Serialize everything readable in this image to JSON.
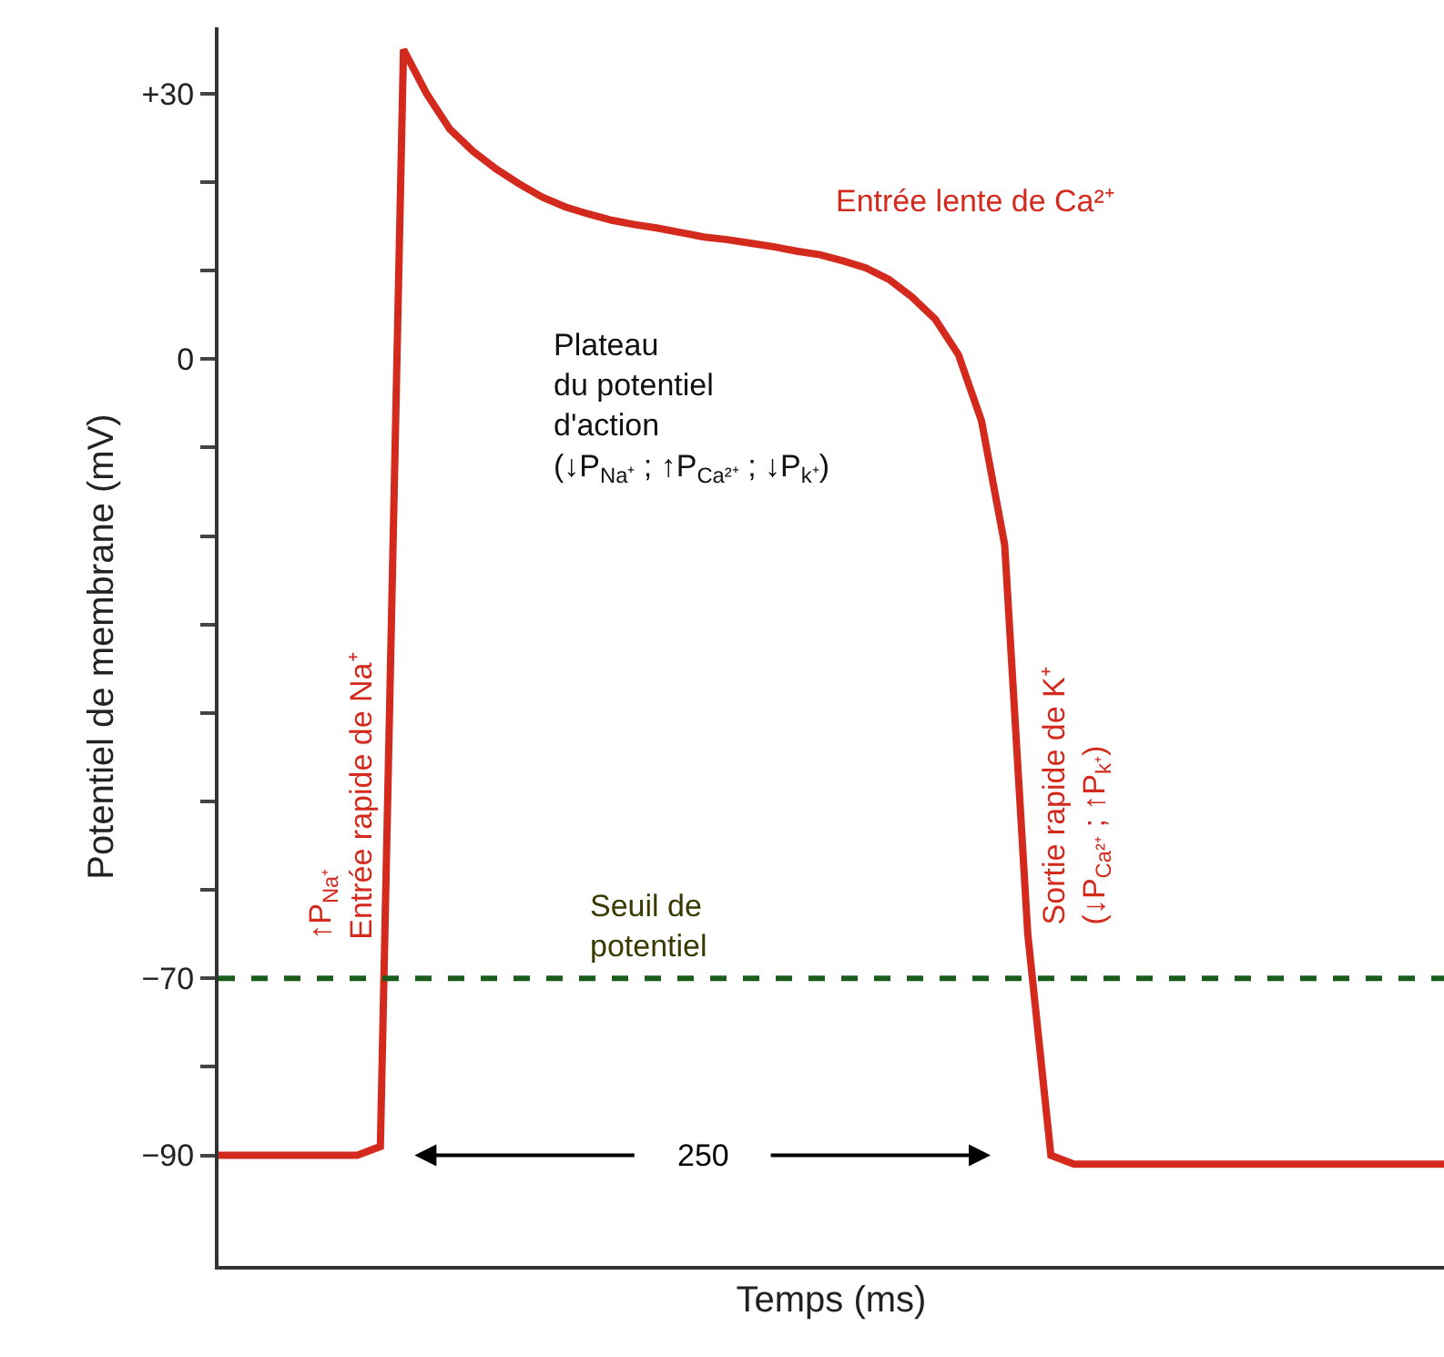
{
  "chart_data": {
    "type": "line",
    "xlabel": "Temps (ms)",
    "ylabel": "Potentiel de membrane (mV)",
    "categories": [
      null,
      null,
      null,
      null,
      null,
      null,
      null,
      null,
      null,
      null,
      null,
      null,
      null,
      null,
      null,
      null,
      null,
      null,
      null,
      null,
      null,
      null,
      null,
      null,
      null,
      null,
      null,
      null,
      null,
      null,
      null,
      null,
      null,
      null,
      null,
      null,
      null,
      null,
      null,
      null,
      null,
      null,
      null,
      null,
      null,
      null,
      null,
      null,
      null,
      null,
      null,
      null,
      null,
      null
    ],
    "ylim": [
      -102.5,
      37.5
    ],
    "yticks": [
      {
        "value": 30,
        "label": "+30"
      },
      {
        "value": 20,
        "label": null
      },
      {
        "value": 10,
        "label": null
      },
      0,
      {
        "value": -10,
        "label": null
      },
      {
        "value": -20,
        "label": null
      },
      {
        "value": -30,
        "label": null
      },
      {
        "value": -40,
        "label": null
      },
      {
        "value": -50,
        "label": null
      },
      {
        "value": -60,
        "label": null
      },
      {
        "value": -70,
        "label": "−70"
      },
      {
        "value": -80,
        "label": null
      },
      {
        "value": -90,
        "label": "−90"
      }
    ],
    "tick_labels": "y",
    "series": [
      {
        "color": "#d42a1e",
        "values": [
          -90,
          -90,
          -90,
          -90,
          -90,
          -90,
          -90,
          -89,
          35,
          30,
          26,
          23.5,
          21.5,
          19.8,
          18.3,
          17.2,
          16.4,
          15.7,
          15.2,
          14.8,
          14.3,
          13.8,
          13.5,
          13.1,
          12.7,
          12.2,
          11.8,
          11.1,
          10.3,
          9,
          7,
          4.5,
          0.5,
          -7,
          -21,
          -65,
          -90,
          -91,
          -91,
          -91,
          -91,
          -91,
          -91,
          -91,
          -91,
          -91,
          -91,
          -91,
          -91,
          -91,
          -91,
          -91,
          -91,
          -91
        ]
      }
    ],
    "ref_lines": [
      {
        "axis": "y",
        "value": -70,
        "label": "Seuil de\npotentiel",
        "color": "#1a5c1a",
        "line_style": "dashed"
      }
    ],
    "annotations": [
      "Entrée lente de Ca²⁺",
      "Plateau\ndu potentiel\nd'action\n(↓P$_{Na⁺}$ ; ↑P$_{Ca²⁺}$ ; ↓P$_{k⁺}$)",
      "↑P$_{Na⁺}$\nEntrée rapide de Na⁺",
      "Sortie rapide de K⁺\n(↓P$_{Ca²⁺}$ ; ↑P$_{k⁺}$)",
      "250"
    ]
  }
}
